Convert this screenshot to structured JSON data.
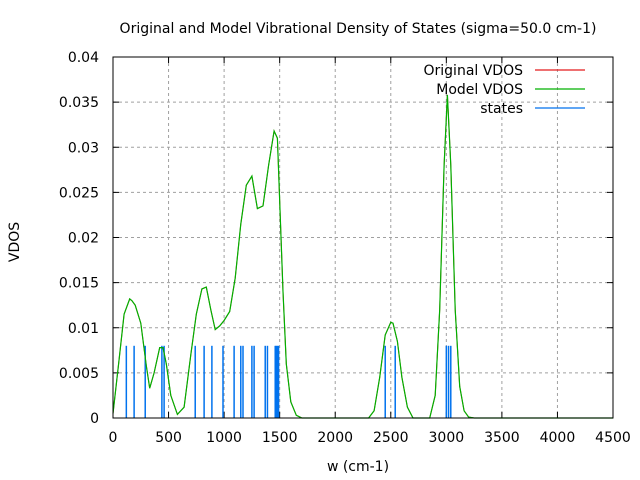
{
  "chart_data": {
    "type": "line",
    "title": "Original and Model Vibrational Density of States (sigma=50.0 cm-1)",
    "xlabel": "w (cm-1)",
    "ylabel": "VDOS",
    "xlim": [
      0,
      4500
    ],
    "ylim": [
      0,
      0.04
    ],
    "grid": true,
    "legend_position": "top-right",
    "x_ticks": [
      "0",
      "500",
      "1000",
      "1500",
      "2000",
      "2500",
      "3000",
      "3500",
      "4000",
      "4500"
    ],
    "x_tick_values": [
      0,
      500,
      1000,
      1500,
      2000,
      2500,
      3000,
      3500,
      4000,
      4500
    ],
    "y_ticks": [
      "0",
      "0.005",
      "0.01",
      "0.015",
      "0.02",
      "0.025",
      "0.03",
      "0.035",
      "0.04"
    ],
    "y_tick_values": [
      0,
      0.005,
      0.01,
      0.015,
      0.02,
      0.025,
      0.03,
      0.035,
      0.04
    ],
    "sigma": 50.0,
    "series": [
      {
        "name": "Original VDOS",
        "color": "#e41a1c",
        "kind": "line"
      },
      {
        "name": "Model VDOS",
        "color": "#00b000",
        "kind": "line"
      },
      {
        "name": "states",
        "color": "#0072ee",
        "kind": "impulses",
        "height": 0.008,
        "x": [
          120,
          190,
          290,
          440,
          460,
          740,
          820,
          890,
          990,
          1090,
          1150,
          1170,
          1250,
          1270,
          1370,
          1390,
          1460,
          1470,
          1480,
          1490,
          2450,
          2540,
          3000,
          3020,
          3040
        ]
      }
    ],
    "model_curve": {
      "x": [
        0,
        50,
        100,
        150,
        170,
        200,
        250,
        300,
        330,
        370,
        420,
        450,
        480,
        520,
        580,
        640,
        700,
        750,
        800,
        840,
        880,
        920,
        960,
        1000,
        1050,
        1100,
        1150,
        1200,
        1250,
        1300,
        1350,
        1400,
        1450,
        1480,
        1500,
        1530,
        1560,
        1600,
        1650,
        1700,
        1800,
        2300,
        2350,
        2400,
        2450,
        2500,
        2520,
        2560,
        2600,
        2650,
        2700,
        2850,
        2900,
        2940,
        2980,
        3010,
        3040,
        3080,
        3120,
        3160,
        3200,
        3250,
        4500
      ],
      "y": [
        0.0005,
        0.006,
        0.0115,
        0.0132,
        0.013,
        0.0125,
        0.0105,
        0.0058,
        0.0033,
        0.005,
        0.0078,
        0.0078,
        0.006,
        0.0025,
        0.0004,
        0.0012,
        0.007,
        0.0115,
        0.0143,
        0.0145,
        0.012,
        0.0098,
        0.0102,
        0.0108,
        0.0118,
        0.0155,
        0.0215,
        0.0258,
        0.0268,
        0.0232,
        0.0235,
        0.028,
        0.0318,
        0.031,
        0.024,
        0.014,
        0.006,
        0.0018,
        0.0003,
        0.0,
        0.0,
        0.0,
        0.0008,
        0.0045,
        0.0092,
        0.0106,
        0.0105,
        0.0085,
        0.0045,
        0.0012,
        0.0,
        0.0,
        0.0025,
        0.012,
        0.028,
        0.0358,
        0.028,
        0.012,
        0.0035,
        0.0008,
        0.0001,
        0.0,
        0.0
      ]
    }
  }
}
